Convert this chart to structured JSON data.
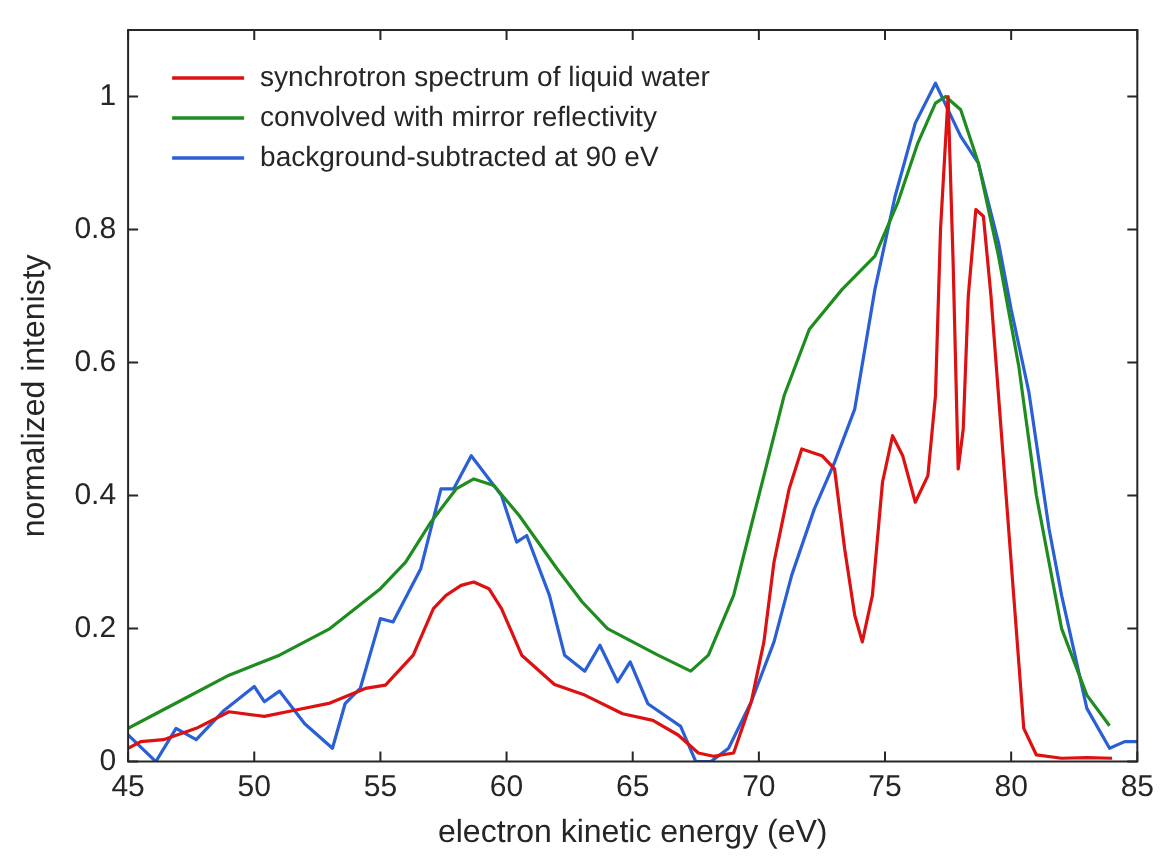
{
  "chart_data": {
    "type": "line",
    "xlabel": "electron kinetic energy (eV)",
    "ylabel": "normalized intenisty",
    "xlim": [
      45,
      85
    ],
    "xticks": [
      45,
      50,
      55,
      60,
      65,
      70,
      75,
      80,
      85
    ],
    "ylim": [
      0,
      1.1
    ],
    "yticks": [
      0,
      0.2,
      0.4,
      0.6,
      0.8,
      1
    ],
    "grid": false,
    "legend": "top left",
    "marker": "none",
    "line_style": "solid",
    "series": [
      {
        "name": "synchrotron spectrum of liquid water",
        "color": "#dd1111",
        "x": [
          45,
          45.5,
          46.4,
          47.7,
          49,
          50.4,
          51.7,
          53,
          54.4,
          55.2,
          56.3,
          57.1,
          57.6,
          58.2,
          58.7,
          59.3,
          59.8,
          60.6,
          61.9,
          63.1,
          64.6,
          65.8,
          66.8,
          67.6,
          68.2,
          69,
          69.7,
          70.2,
          70.6,
          71.2,
          71.7,
          72.5,
          73,
          73.4,
          73.8,
          74.1,
          74.5,
          74.9,
          75.3,
          75.7,
          76.2,
          76.7,
          77,
          77.2,
          77.5,
          77.7,
          77.9,
          78.1,
          78.3,
          78.6,
          78.9,
          79.2,
          79.6,
          80.1,
          80.5,
          81,
          82,
          83,
          84
        ],
        "values": [
          0.02,
          0.03,
          0.033,
          0.05,
          0.075,
          0.068,
          0.078,
          0.088,
          0.11,
          0.115,
          0.16,
          0.23,
          0.25,
          0.265,
          0.27,
          0.26,
          0.23,
          0.16,
          0.116,
          0.1,
          0.072,
          0.062,
          0.04,
          0.013,
          0.008,
          0.013,
          0.09,
          0.18,
          0.3,
          0.41,
          0.47,
          0.46,
          0.44,
          0.32,
          0.22,
          0.18,
          0.25,
          0.42,
          0.49,
          0.46,
          0.39,
          0.43,
          0.55,
          0.8,
          1.0,
          0.75,
          0.44,
          0.5,
          0.7,
          0.83,
          0.82,
          0.7,
          0.5,
          0.25,
          0.05,
          0.01,
          0.005,
          0.006,
          0.005
        ]
      },
      {
        "name": "convolved with mirror reflectivity",
        "color": "#1e8c1e",
        "x": [
          45,
          47,
          49,
          51,
          53,
          55,
          56,
          57,
          58,
          58.7,
          59.5,
          60.5,
          62,
          63,
          64,
          65,
          66,
          67.3,
          68,
          69,
          69.8,
          71,
          72,
          73.3,
          74.6,
          75.5,
          76.3,
          77,
          77.4,
          78,
          78.7,
          79.5,
          80.3,
          81,
          82,
          83,
          83.9
        ],
        "values": [
          0.05,
          0.09,
          0.13,
          0.16,
          0.2,
          0.26,
          0.3,
          0.36,
          0.41,
          0.425,
          0.415,
          0.37,
          0.29,
          0.24,
          0.2,
          0.18,
          0.16,
          0.136,
          0.16,
          0.25,
          0.37,
          0.55,
          0.65,
          0.71,
          0.76,
          0.84,
          0.93,
          0.99,
          1.0,
          0.98,
          0.9,
          0.76,
          0.595,
          0.4,
          0.2,
          0.1,
          0.054
        ]
      },
      {
        "name": "background-subtracted at 90 eV",
        "color": "#2a5fd6",
        "x": [
          45,
          46.1,
          46.9,
          47.7,
          48.8,
          50,
          50.4,
          51,
          52,
          53.1,
          53.6,
          54.2,
          55,
          55.5,
          56.6,
          57.4,
          57.9,
          58.6,
          59.8,
          60.4,
          60.8,
          61.7,
          62.3,
          63.1,
          63.7,
          64.4,
          64.9,
          65.6,
          66.9,
          67.5,
          68.1,
          68.8,
          69.7,
          70.6,
          71.3,
          72.2,
          73,
          73.8,
          74.6,
          75.4,
          76.2,
          77,
          77.5,
          78,
          78.7,
          79.5,
          80,
          80.7,
          81.5,
          82,
          83,
          83.9,
          84.5,
          85
        ],
        "values": [
          0.04,
          0.0,
          0.05,
          0.033,
          0.077,
          0.113,
          0.09,
          0.106,
          0.057,
          0.02,
          0.087,
          0.11,
          0.215,
          0.21,
          0.29,
          0.41,
          0.41,
          0.46,
          0.4,
          0.33,
          0.34,
          0.25,
          0.16,
          0.136,
          0.175,
          0.12,
          0.15,
          0.087,
          0.053,
          0.0,
          0.0,
          0.02,
          0.09,
          0.18,
          0.28,
          0.38,
          0.45,
          0.53,
          0.71,
          0.85,
          0.96,
          1.02,
          0.98,
          0.94,
          0.9,
          0.78,
          0.68,
          0.556,
          0.35,
          0.25,
          0.08,
          0.02,
          0.03,
          0.03
        ]
      }
    ]
  }
}
